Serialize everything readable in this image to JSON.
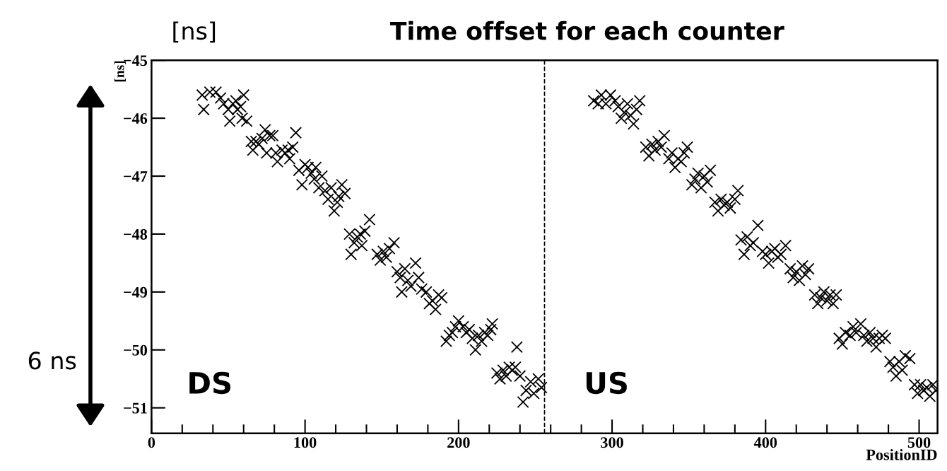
{
  "chart_data": {
    "type": "scatter",
    "title": "Time offset for each counter",
    "xlabel": "PositionID",
    "ylabel": "[ns]",
    "annotations": [
      "[ns]",
      "6 ns",
      "DS",
      "US"
    ],
    "marker": "cross",
    "grid": false,
    "legend": false,
    "xlim": [
      0,
      512
    ],
    "xticks": [
      0,
      {
        "value": 20,
        "label": null
      },
      {
        "value": 40,
        "label": null
      },
      {
        "value": 60,
        "label": null
      },
      {
        "value": 80,
        "label": null
      },
      100,
      {
        "value": 120,
        "label": null
      },
      {
        "value": 140,
        "label": null
      },
      {
        "value": 160,
        "label": null
      },
      {
        "value": 180,
        "label": null
      },
      200,
      {
        "value": 220,
        "label": null
      },
      {
        "value": 240,
        "label": null
      },
      {
        "value": 260,
        "label": null
      },
      {
        "value": 280,
        "label": null
      },
      300,
      {
        "value": 320,
        "label": null
      },
      {
        "value": 340,
        "label": null
      },
      {
        "value": 360,
        "label": null
      },
      {
        "value": 380,
        "label": null
      },
      400,
      {
        "value": 420,
        "label": null
      },
      {
        "value": 440,
        "label": null
      },
      {
        "value": 460,
        "label": null
      },
      {
        "value": 480,
        "label": null
      },
      500
    ],
    "ylim": [
      -51.44,
      -45
    ],
    "yticks": [
      {
        "value": -45,
        "label": "−45"
      },
      {
        "value": -46,
        "label": "−46"
      },
      {
        "value": -47,
        "label": "−47"
      },
      {
        "value": -48,
        "label": "−48"
      },
      {
        "value": -49,
        "label": "−49"
      },
      {
        "value": -50,
        "label": "−50"
      },
      {
        "value": -51,
        "label": "−51"
      }
    ],
    "ref_lines": [
      {
        "axis": "x",
        "value": 256,
        "color": "#000000",
        "line_style": "dashed"
      }
    ],
    "series": [
      {
        "color": "#000000",
        "x": [
          33,
          34,
          38,
          42,
          45,
          47,
          50,
          51,
          53,
          55,
          56,
          58,
          59,
          60,
          62,
          65,
          66,
          68,
          70,
          72,
          74,
          75,
          77,
          79,
          81,
          82,
          85,
          87,
          89,
          90,
          92,
          94,
          96,
          98,
          100,
          102,
          104,
          106,
          107,
          109,
          111,
          113,
          115,
          117,
          119,
          121,
          122,
          124,
          126,
          129,
          130,
          132,
          134,
          136,
          137,
          139,
          142,
          147,
          149,
          151,
          153,
          155,
          158,
          160,
          162,
          163,
          165,
          167,
          169,
          172,
          174,
          176,
          179,
          181,
          183,
          185,
          187,
          189,
          192,
          194,
          196,
          198,
          200,
          203,
          205,
          207,
          209,
          211,
          213,
          215,
          217,
          219,
          221,
          222,
          225,
          227,
          229,
          231,
          233,
          235,
          237,
          238,
          240,
          242,
          244,
          247,
          249,
          252,
          254,
          288,
          291,
          293,
          296,
          299,
          302,
          304,
          306,
          308,
          310,
          312,
          314,
          316,
          318,
          322,
          324,
          326,
          328,
          330,
          332,
          334,
          337,
          339,
          341,
          343,
          345,
          347,
          349,
          352,
          354,
          356,
          358,
          360,
          362,
          364,
          367,
          369,
          371,
          373,
          375,
          377,
          380,
          382,
          384,
          386,
          388,
          390,
          392,
          395,
          398,
          400,
          402,
          404,
          406,
          408,
          410,
          413,
          416,
          418,
          420,
          422,
          424,
          426,
          428,
          432,
          434,
          436,
          438,
          440,
          442,
          444,
          446,
          448,
          450,
          452,
          455,
          457,
          459,
          462,
          464,
          466,
          468,
          470,
          472,
          474,
          476,
          478,
          481,
          483,
          485,
          487,
          489,
          491,
          494,
          497,
          499,
          501,
          503,
          505,
          507,
          509,
          511
        ],
        "values": [
          -45.6,
          -45.85,
          -45.55,
          -45.55,
          -45.65,
          -45.75,
          -45.85,
          -46.05,
          -45.75,
          -45.7,
          -45.85,
          -45.8,
          -46.0,
          -45.6,
          -46.05,
          -46.4,
          -46.55,
          -46.4,
          -46.45,
          -46.35,
          -46.2,
          -46.6,
          -46.3,
          -46.3,
          -46.6,
          -46.75,
          -46.55,
          -46.6,
          -46.55,
          -46.7,
          -46.5,
          -46.25,
          -46.9,
          -47.15,
          -46.8,
          -46.85,
          -46.95,
          -47.05,
          -46.85,
          -47.2,
          -47.0,
          -47.25,
          -47.4,
          -47.2,
          -47.6,
          -47.45,
          -47.35,
          -47.15,
          -47.3,
          -48.0,
          -48.35,
          -48.15,
          -48.05,
          -48.0,
          -48.2,
          -47.95,
          -47.75,
          -48.35,
          -48.45,
          -48.3,
          -48.4,
          -48.25,
          -48.15,
          -48.65,
          -48.75,
          -49.0,
          -48.6,
          -48.8,
          -48.9,
          -48.5,
          -48.75,
          -48.95,
          -49.0,
          -49.2,
          -49.15,
          -49.3,
          -49.05,
          -49.1,
          -49.85,
          -49.75,
          -49.7,
          -49.6,
          -49.5,
          -49.6,
          -49.7,
          -49.65,
          -49.8,
          -50.0,
          -49.75,
          -49.85,
          -49.7,
          -49.75,
          -49.65,
          -49.55,
          -50.4,
          -50.5,
          -50.35,
          -50.45,
          -50.3,
          -50.35,
          -50.3,
          -49.95,
          -50.45,
          -50.9,
          -50.7,
          -50.55,
          -50.75,
          -50.5,
          -50.65,
          -45.7,
          -45.75,
          -45.6,
          -45.75,
          -45.6,
          -45.7,
          -45.8,
          -46.0,
          -45.9,
          -45.75,
          -45.95,
          -46.1,
          -45.85,
          -45.7,
          -46.5,
          -46.65,
          -46.45,
          -46.55,
          -46.4,
          -46.5,
          -46.3,
          -46.7,
          -46.6,
          -46.85,
          -46.7,
          -46.75,
          -46.6,
          -46.5,
          -47.15,
          -47.05,
          -46.95,
          -47.2,
          -47.0,
          -47.1,
          -46.9,
          -47.45,
          -47.6,
          -47.4,
          -47.5,
          -47.45,
          -47.55,
          -47.4,
          -47.25,
          -48.1,
          -48.35,
          -48.05,
          -48.2,
          -48.15,
          -47.85,
          -48.3,
          -48.35,
          -48.5,
          -48.3,
          -48.25,
          -48.4,
          -48.35,
          -48.2,
          -48.6,
          -48.75,
          -48.65,
          -48.8,
          -48.55,
          -48.7,
          -48.6,
          -49.05,
          -49.2,
          -49.1,
          -49.0,
          -49.15,
          -49.05,
          -49.2,
          -49.05,
          -49.8,
          -49.9,
          -49.7,
          -49.75,
          -49.6,
          -49.7,
          -49.55,
          -49.75,
          -49.85,
          -49.7,
          -49.8,
          -49.95,
          -49.8,
          -49.75,
          -49.8,
          -50.2,
          -50.3,
          -50.45,
          -50.2,
          -50.35,
          -50.1,
          -50.15,
          -50.6,
          -50.75,
          -50.6,
          -50.7,
          -50.65,
          -50.8,
          -50.6,
          -50.7
        ]
      }
    ]
  }
}
